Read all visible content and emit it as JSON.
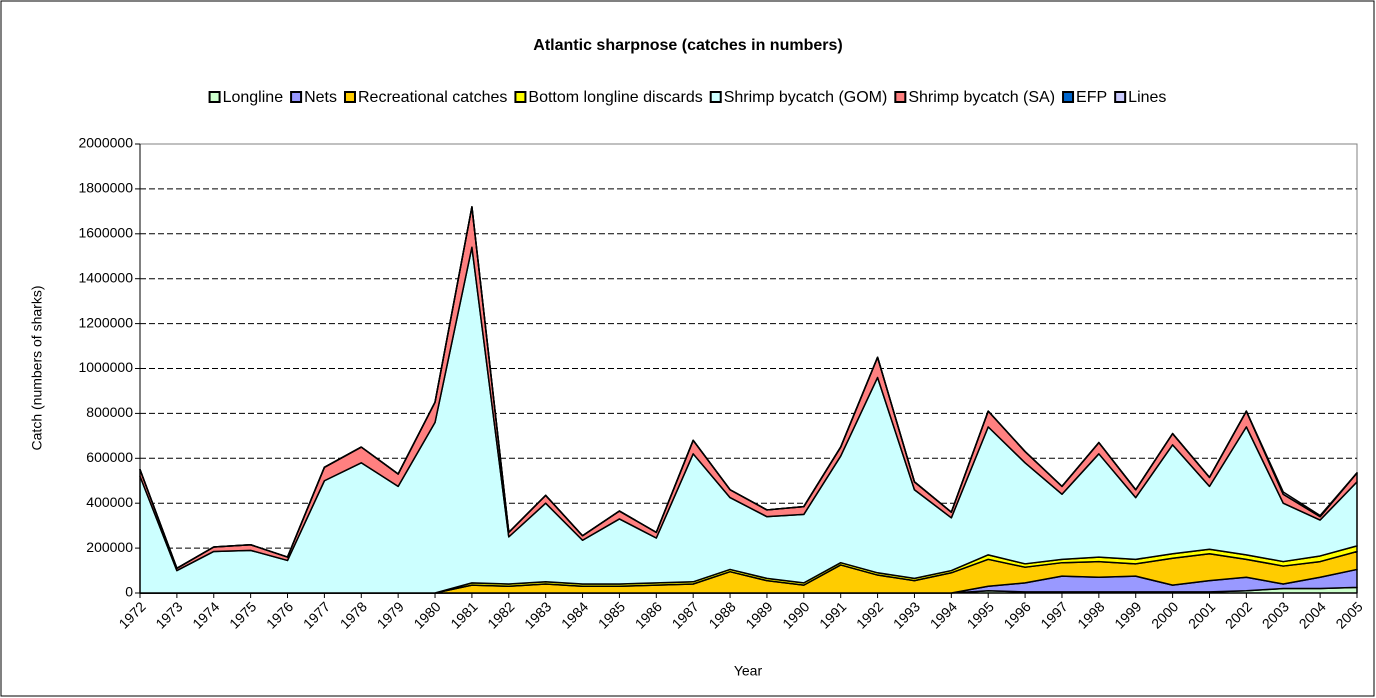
{
  "chart_data": {
    "type": "area",
    "stacked": true,
    "title": "Atlantic sharpnose (catches in numbers)",
    "x_label": "Year",
    "y_label": "Catch (numbers of sharks)",
    "categories": [
      "1972",
      "1973",
      "1974",
      "1975",
      "1976",
      "1977",
      "1978",
      "1979",
      "1980",
      "1981",
      "1982",
      "1983",
      "1984",
      "1985",
      "1986",
      "1987",
      "1988",
      "1989",
      "1990",
      "1991",
      "1992",
      "1993",
      "1994",
      "1995",
      "1996",
      "1997",
      "1998",
      "1999",
      "2000",
      "2001",
      "2002",
      "2003",
      "2004",
      "2005"
    ],
    "ylim": [
      0,
      2000000
    ],
    "yticks": [
      0,
      200000,
      400000,
      600000,
      800000,
      1000000,
      1200000,
      1400000,
      1600000,
      1800000,
      2000000
    ],
    "grid": true,
    "legend": "top",
    "series": [
      {
        "name": "Longline",
        "color": "#ccffcc",
        "values": [
          0,
          0,
          0,
          0,
          0,
          0,
          0,
          0,
          0,
          0,
          0,
          0,
          0,
          0,
          0,
          0,
          0,
          0,
          0,
          0,
          0,
          0,
          0,
          10000,
          5000,
          5000,
          5000,
          5000,
          5000,
          5000,
          10000,
          20000,
          20000,
          25000
        ]
      },
      {
        "name": "Nets",
        "color": "#9999ff",
        "values": [
          0,
          0,
          0,
          0,
          0,
          0,
          0,
          0,
          0,
          0,
          0,
          0,
          0,
          0,
          0,
          0,
          0,
          0,
          0,
          0,
          0,
          0,
          0,
          20000,
          40000,
          70000,
          65000,
          70000,
          30000,
          50000,
          60000,
          20000,
          50000,
          80000
        ]
      },
      {
        "name": "Recreational catches",
        "color": "#ffcc00",
        "values": [
          0,
          0,
          0,
          0,
          0,
          0,
          0,
          0,
          0,
          35000,
          30000,
          40000,
          30000,
          30000,
          35000,
          40000,
          95000,
          55000,
          35000,
          125000,
          80000,
          55000,
          90000,
          120000,
          70000,
          60000,
          70000,
          55000,
          120000,
          120000,
          80000,
          80000,
          70000,
          80000
        ]
      },
      {
        "name": "Bottom longline discards",
        "color": "#ffff00",
        "values": [
          0,
          0,
          0,
          0,
          0,
          0,
          0,
          0,
          0,
          10000,
          10000,
          10000,
          10000,
          10000,
          10000,
          10000,
          10000,
          10000,
          10000,
          10000,
          10000,
          10000,
          10000,
          20000,
          15000,
          15000,
          20000,
          20000,
          20000,
          20000,
          20000,
          20000,
          25000,
          25000
        ]
      },
      {
        "name": "Shrimp bycatch (GOM)",
        "color": "#ccffff",
        "values": [
          520000,
          100000,
          185000,
          190000,
          145000,
          500000,
          580000,
          475000,
          760000,
          1495000,
          210000,
          350000,
          195000,
          290000,
          200000,
          570000,
          320000,
          275000,
          305000,
          475000,
          870000,
          395000,
          235000,
          570000,
          450000,
          290000,
          460000,
          275000,
          485000,
          280000,
          570000,
          260000,
          160000,
          285000
        ]
      },
      {
        "name": "Shrimp bycatch (SA)",
        "color": "#ff8080",
        "values": [
          30000,
          10000,
          20000,
          25000,
          15000,
          60000,
          70000,
          55000,
          90000,
          180000,
          20000,
          35000,
          20000,
          35000,
          25000,
          60000,
          35000,
          30000,
          35000,
          40000,
          90000,
          35000,
          25000,
          70000,
          50000,
          35000,
          50000,
          35000,
          50000,
          40000,
          70000,
          40000,
          15000,
          40000
        ]
      },
      {
        "name": "EFP",
        "color": "#0066cc",
        "values": [
          0,
          0,
          0,
          0,
          0,
          0,
          0,
          0,
          0,
          0,
          0,
          0,
          0,
          0,
          0,
          0,
          0,
          0,
          0,
          0,
          0,
          0,
          0,
          0,
          0,
          0,
          0,
          0,
          0,
          0,
          0,
          0,
          0,
          0
        ]
      },
      {
        "name": "Lines",
        "color": "#ccccff",
        "values": [
          0,
          0,
          0,
          0,
          0,
          0,
          0,
          0,
          0,
          0,
          0,
          0,
          0,
          0,
          0,
          0,
          0,
          0,
          0,
          0,
          0,
          0,
          0,
          0,
          0,
          0,
          0,
          0,
          0,
          0,
          0,
          10000,
          5000,
          0
        ]
      }
    ]
  }
}
